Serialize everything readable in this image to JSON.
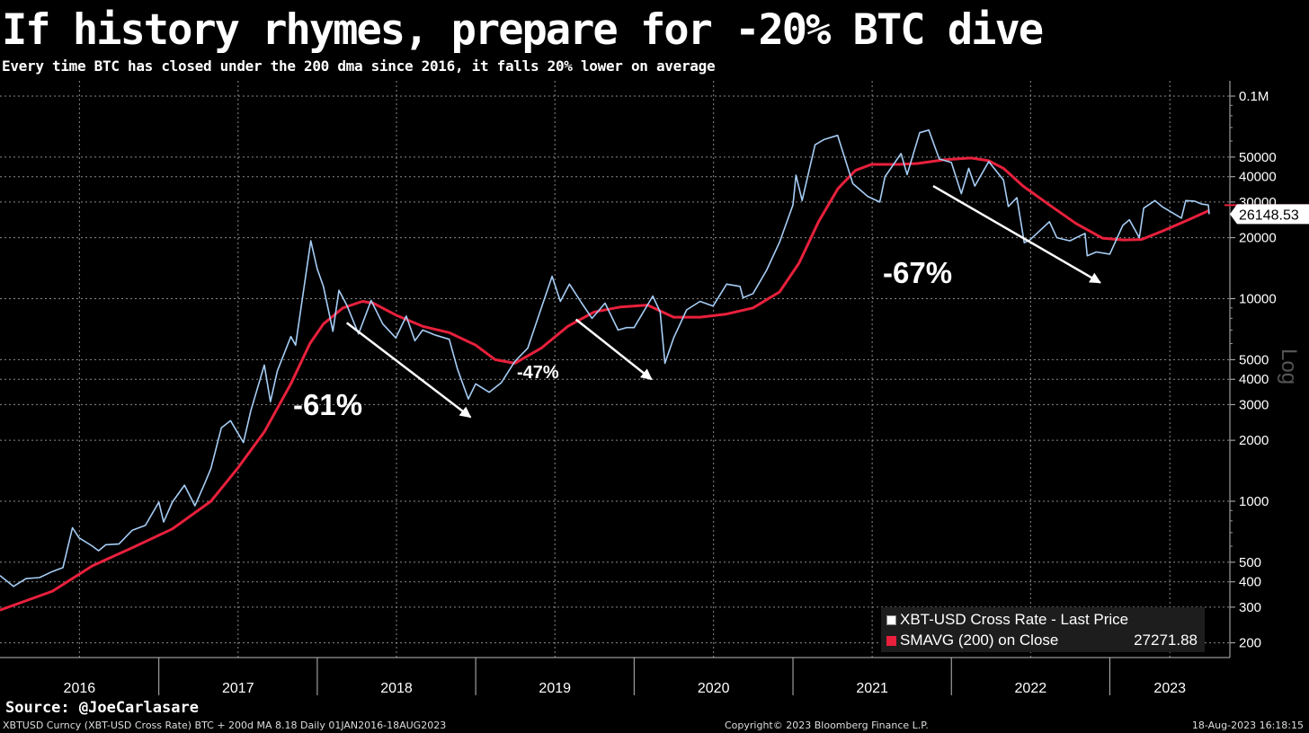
{
  "title": "If history rhymes, prepare for -20% BTC dive",
  "subtitle": "Every time BTC has closed under the 200 dma since 2016, it falls 20% lower on average",
  "source": "Source: @JoeCarlasare",
  "footer": {
    "left": "XBTUSD Curncy (XBT-USD Cross Rate) BTC + 200d MA 8.18  Daily 01JAN2016-18AUG2023",
    "center": "Copyright© 2023 Bloomberg Finance L.P.",
    "right": "18-Aug-2023 16:18:15"
  },
  "legend": {
    "price_label": "XBT-USD Cross Rate - Last Price",
    "ma_label": "SMAVG (200)  on Close",
    "ma_value": "27271.88"
  },
  "colors": {
    "background": "#000000",
    "price": "#a6cdf5",
    "moving_average": "#e8203c",
    "grid": "#8a8a8a"
  },
  "chart_data": {
    "type": "line",
    "title": "If history rhymes, prepare for -20% BTC dive",
    "y_scale": "log",
    "y_scale_label": "Log",
    "ylim": [
      180,
      120000
    ],
    "xlim": [
      "2016-01-01",
      "2023-08-18"
    ],
    "x_ticks": [
      "2016",
      "2017",
      "2018",
      "2019",
      "2020",
      "2021",
      "2022",
      "2023"
    ],
    "y_ticks": [
      {
        "value": 100000,
        "label": "0.1M"
      },
      {
        "value": 50000,
        "label": "50000"
      },
      {
        "value": 40000,
        "label": "40000"
      },
      {
        "value": 30000,
        "label": "30000"
      },
      {
        "value": 20000,
        "label": "20000"
      },
      {
        "value": 10000,
        "label": "10000"
      },
      {
        "value": 5000,
        "label": "5000"
      },
      {
        "value": 4000,
        "label": "4000"
      },
      {
        "value": 3000,
        "label": "3000"
      },
      {
        "value": 2000,
        "label": "2000"
      },
      {
        "value": 1000,
        "label": "1000"
      },
      {
        "value": 500,
        "label": "500"
      },
      {
        "value": 400,
        "label": "400"
      },
      {
        "value": 300,
        "label": "300"
      },
      {
        "value": 200,
        "label": "200"
      }
    ],
    "grid": true,
    "legend_position": "bottom-right",
    "last_price_label": "26148.53",
    "last_price": 26148.53,
    "series": [
      {
        "name": "XBT-USD Cross Rate - Last Price",
        "color": "#a6cdf5",
        "points": [
          [
            "2016-01-01",
            430
          ],
          [
            "2016-02-01",
            380
          ],
          [
            "2016-03-01",
            415
          ],
          [
            "2016-04-01",
            420
          ],
          [
            "2016-05-01",
            450
          ],
          [
            "2016-05-25",
            470
          ],
          [
            "2016-06-16",
            740
          ],
          [
            "2016-07-01",
            660
          ],
          [
            "2016-08-01",
            600
          ],
          [
            "2016-08-15",
            570
          ],
          [
            "2016-09-01",
            610
          ],
          [
            "2016-10-01",
            615
          ],
          [
            "2016-11-01",
            720
          ],
          [
            "2016-12-01",
            760
          ],
          [
            "2017-01-01",
            990
          ],
          [
            "2017-01-12",
            790
          ],
          [
            "2017-02-01",
            990
          ],
          [
            "2017-03-01",
            1200
          ],
          [
            "2017-03-25",
            950
          ],
          [
            "2017-04-15",
            1200
          ],
          [
            "2017-05-01",
            1450
          ],
          [
            "2017-05-25",
            2300
          ],
          [
            "2017-06-15",
            2500
          ],
          [
            "2017-07-15",
            1950
          ],
          [
            "2017-08-01",
            2800
          ],
          [
            "2017-09-01",
            4700
          ],
          [
            "2017-09-15",
            3100
          ],
          [
            "2017-10-01",
            4400
          ],
          [
            "2017-11-01",
            6500
          ],
          [
            "2017-11-12",
            5900
          ],
          [
            "2017-12-17",
            19300
          ],
          [
            "2018-01-01",
            14000
          ],
          [
            "2018-01-15",
            11500
          ],
          [
            "2018-02-06",
            6900
          ],
          [
            "2018-02-20",
            11000
          ],
          [
            "2018-03-10",
            9300
          ],
          [
            "2018-04-06",
            6700
          ],
          [
            "2018-05-05",
            9800
          ],
          [
            "2018-06-01",
            7500
          ],
          [
            "2018-07-01",
            6400
          ],
          [
            "2018-07-25",
            8200
          ],
          [
            "2018-08-14",
            6200
          ],
          [
            "2018-09-01",
            7000
          ],
          [
            "2018-10-01",
            6600
          ],
          [
            "2018-11-01",
            6300
          ],
          [
            "2018-11-20",
            4500
          ],
          [
            "2018-12-15",
            3200
          ],
          [
            "2019-01-01",
            3800
          ],
          [
            "2019-02-01",
            3450
          ],
          [
            "2019-03-01",
            3850
          ],
          [
            "2019-04-01",
            4900
          ],
          [
            "2019-05-01",
            5700
          ],
          [
            "2019-05-30",
            8700
          ],
          [
            "2019-06-26",
            12900
          ],
          [
            "2019-07-15",
            9700
          ],
          [
            "2019-08-05",
            11800
          ],
          [
            "2019-09-01",
            9600
          ],
          [
            "2019-09-26",
            8000
          ],
          [
            "2019-10-26",
            9500
          ],
          [
            "2019-11-25",
            7000
          ],
          [
            "2019-12-15",
            7200
          ],
          [
            "2020-01-01",
            7200
          ],
          [
            "2020-02-13",
            10300
          ],
          [
            "2020-03-01",
            8600
          ],
          [
            "2020-03-12",
            4800
          ],
          [
            "2020-04-01",
            6400
          ],
          [
            "2020-05-01",
            8800
          ],
          [
            "2020-06-01",
            9700
          ],
          [
            "2020-07-01",
            9200
          ],
          [
            "2020-08-01",
            11800
          ],
          [
            "2020-09-01",
            11500
          ],
          [
            "2020-09-08",
            10100
          ],
          [
            "2020-10-01",
            10600
          ],
          [
            "2020-11-01",
            13800
          ],
          [
            "2020-12-01",
            19000
          ],
          [
            "2021-01-01",
            29000
          ],
          [
            "2021-01-08",
            40700
          ],
          [
            "2021-01-22",
            30500
          ],
          [
            "2021-02-21",
            57500
          ],
          [
            "2021-03-13",
            61000
          ],
          [
            "2021-04-14",
            64000
          ],
          [
            "2021-05-19",
            37000
          ],
          [
            "2021-06-22",
            32000
          ],
          [
            "2021-07-20",
            30000
          ],
          [
            "2021-08-01",
            40000
          ],
          [
            "2021-09-07",
            52000
          ],
          [
            "2021-09-21",
            41000
          ],
          [
            "2021-10-20",
            66000
          ],
          [
            "2021-11-10",
            68000
          ],
          [
            "2021-12-04",
            49000
          ],
          [
            "2022-01-01",
            47000
          ],
          [
            "2022-01-24",
            33000
          ],
          [
            "2022-02-10",
            44000
          ],
          [
            "2022-02-24",
            36000
          ],
          [
            "2022-03-28",
            47500
          ],
          [
            "2022-05-01",
            38500
          ],
          [
            "2022-05-12",
            28500
          ],
          [
            "2022-06-01",
            31500
          ],
          [
            "2022-06-18",
            18900
          ],
          [
            "2022-07-01",
            19500
          ],
          [
            "2022-08-15",
            24000
          ],
          [
            "2022-09-01",
            20000
          ],
          [
            "2022-10-01",
            19300
          ],
          [
            "2022-11-05",
            21000
          ],
          [
            "2022-11-10",
            16300
          ],
          [
            "2022-12-01",
            17000
          ],
          [
            "2023-01-01",
            16600
          ],
          [
            "2023-01-31",
            23000
          ],
          [
            "2023-02-15",
            24500
          ],
          [
            "2023-03-10",
            20000
          ],
          [
            "2023-03-20",
            28000
          ],
          [
            "2023-04-15",
            30500
          ],
          [
            "2023-05-01",
            28500
          ],
          [
            "2023-06-15",
            25000
          ],
          [
            "2023-06-25",
            30500
          ],
          [
            "2023-07-15",
            30300
          ],
          [
            "2023-08-01",
            29300
          ],
          [
            "2023-08-16",
            29000
          ],
          [
            "2023-08-18",
            26148.53
          ]
        ]
      },
      {
        "name": "SMAVG (200)  on Close",
        "color": "#e8203c",
        "points": [
          [
            "2016-01-01",
            290
          ],
          [
            "2016-05-01",
            360
          ],
          [
            "2016-08-01",
            480
          ],
          [
            "2016-11-01",
            590
          ],
          [
            "2017-02-01",
            730
          ],
          [
            "2017-05-01",
            1000
          ],
          [
            "2017-07-01",
            1450
          ],
          [
            "2017-09-01",
            2200
          ],
          [
            "2017-11-01",
            3800
          ],
          [
            "2017-12-15",
            6000
          ],
          [
            "2018-01-15",
            7500
          ],
          [
            "2018-03-01",
            9000
          ],
          [
            "2018-04-15",
            9700
          ],
          [
            "2018-05-10",
            9500
          ],
          [
            "2018-07-01",
            8300
          ],
          [
            "2018-09-01",
            7300
          ],
          [
            "2018-11-01",
            6800
          ],
          [
            "2019-01-01",
            5900
          ],
          [
            "2019-02-15",
            5000
          ],
          [
            "2019-04-01",
            4800
          ],
          [
            "2019-06-01",
            5700
          ],
          [
            "2019-08-01",
            7300
          ],
          [
            "2019-10-01",
            8600
          ],
          [
            "2019-12-01",
            9100
          ],
          [
            "2020-02-01",
            9300
          ],
          [
            "2020-04-01",
            8100
          ],
          [
            "2020-06-01",
            8100
          ],
          [
            "2020-08-01",
            8400
          ],
          [
            "2020-10-01",
            9000
          ],
          [
            "2020-12-01",
            10800
          ],
          [
            "2021-01-15",
            15000
          ],
          [
            "2021-03-01",
            24000
          ],
          [
            "2021-04-15",
            35000
          ],
          [
            "2021-05-25",
            43000
          ],
          [
            "2021-07-01",
            46000
          ],
          [
            "2021-09-01",
            46000
          ],
          [
            "2021-10-15",
            46500
          ],
          [
            "2021-12-15",
            48500
          ],
          [
            "2022-02-15",
            49500
          ],
          [
            "2022-03-28",
            48000
          ],
          [
            "2022-05-01",
            44000
          ],
          [
            "2022-06-15",
            36000
          ],
          [
            "2022-08-15",
            29000
          ],
          [
            "2022-10-15",
            23500
          ],
          [
            "2022-12-15",
            19900
          ],
          [
            "2023-02-01",
            19500
          ],
          [
            "2023-03-15",
            19600
          ],
          [
            "2023-05-01",
            21500
          ],
          [
            "2023-07-01",
            24500
          ],
          [
            "2023-08-18",
            27271.88
          ]
        ]
      }
    ],
    "annotations": [
      {
        "text": "-61%",
        "from": [
          "2018-03-10",
          7600
        ],
        "to": [
          "2018-12-20",
          2600
        ]
      },
      {
        "text": "-47%",
        "from": [
          "2019-08-20",
          7900
        ],
        "to": [
          "2020-02-10",
          4000
        ]
      },
      {
        "text": "-67%",
        "from": [
          "2021-11-20",
          36000
        ],
        "to": [
          "2022-12-10",
          12000
        ]
      }
    ]
  }
}
